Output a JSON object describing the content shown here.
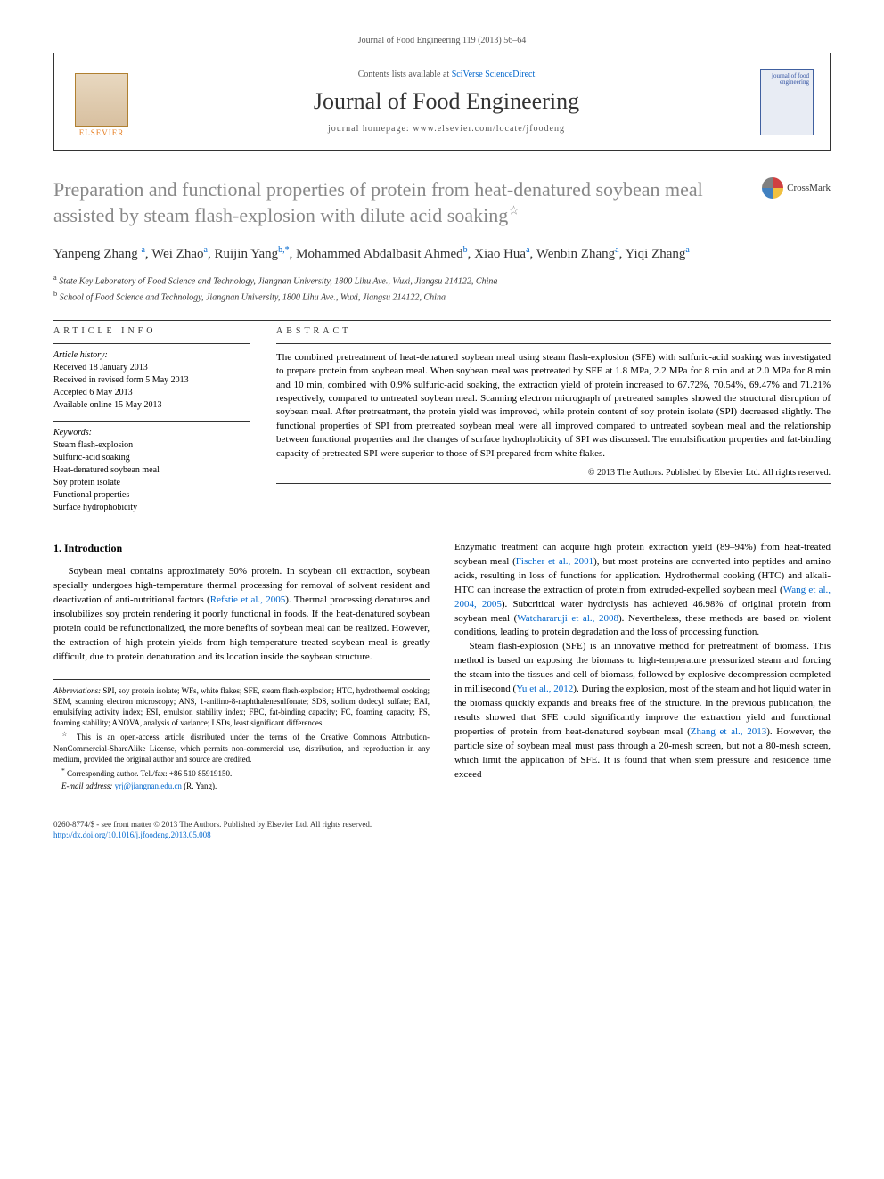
{
  "journal_ref": "Journal of Food Engineering 119 (2013) 56–64",
  "header": {
    "contents_prefix": "Contents lists available at ",
    "contents_link": "SciVerse ScienceDirect",
    "journal_name": "Journal of Food Engineering",
    "homepage_prefix": "journal homepage: ",
    "homepage_url": "www.elsevier.com/locate/jfoodeng",
    "elsevier_label": "ELSEVIER",
    "cover_text": "journal of food engineering"
  },
  "crossmark_label": "CrossMark",
  "title": "Preparation and functional properties of protein from heat-denatured soybean meal assisted by steam flash-explosion with dilute acid soaking",
  "title_star": "☆",
  "authors_html": "Yanpeng Zhang <sup>a</sup>, Wei Zhao<sup>a</sup>, Ruijin Yang<sup>b,*</sup>, Mohammed Abdalbasit Ahmed<sup>b</sup>, Xiao Hua<sup>a</sup>, Wenbin Zhang<sup>a</sup>, Yiqi Zhang<sup>a</sup>",
  "affiliations": {
    "a": "State Key Laboratory of Food Science and Technology, Jiangnan University, 1800 Lihu Ave., Wuxi, Jiangsu 214122, China",
    "b": "School of Food Science and Technology, Jiangnan University, 1800 Lihu Ave., Wuxi, Jiangsu 214122, China"
  },
  "article_info": {
    "heading": "ARTICLE INFO",
    "history_label": "Article history:",
    "history": [
      "Received 18 January 2013",
      "Received in revised form 5 May 2013",
      "Accepted 6 May 2013",
      "Available online 15 May 2013"
    ],
    "keywords_label": "Keywords:",
    "keywords": [
      "Steam flash-explosion",
      "Sulfuric-acid soaking",
      "Heat-denatured soybean meal",
      "Soy protein isolate",
      "Functional properties",
      "Surface hydrophobicity"
    ]
  },
  "abstract": {
    "heading": "ABSTRACT",
    "text": "The combined pretreatment of heat-denatured soybean meal using steam flash-explosion (SFE) with sulfuric-acid soaking was investigated to prepare protein from soybean meal. When soybean meal was pretreated by SFE at 1.8 MPa, 2.2 MPa for 8 min and at 2.0 MPa for 8 min and 10 min, combined with 0.9% sulfuric-acid soaking, the extraction yield of protein increased to 67.72%, 70.54%, 69.47% and 71.21% respectively, compared to untreated soybean meal. Scanning electron micrograph of pretreated samples showed the structural disruption of soybean meal. After pretreatment, the protein yield was improved, while protein content of soy protein isolate (SPI) decreased slightly. The functional properties of SPI from pretreated soybean meal were all improved compared to untreated soybean meal and the relationship between functional properties and the changes of surface hydrophobicity of SPI was discussed. The emulsification properties and fat-binding capacity of pretreated SPI were superior to those of SPI prepared from white flakes.",
    "copyright": "© 2013 The Authors. Published by Elsevier Ltd. All rights reserved."
  },
  "body": {
    "section_heading": "1. Introduction",
    "col1": [
      "Soybean meal contains approximately 50% protein. In soybean oil extraction, soybean specially undergoes high-temperature thermal processing for removal of solvent resident and deactivation of anti-nutritional factors (<span class=\"ref-link\">Refstie et al., 2005</span>). Thermal processing denatures and insolubilizes soy protein rendering it poorly functional in foods. If the heat-denatured soybean protein could be refunctionalized, the more benefits of soybean meal can be realized. However, the extraction of high protein yields from high-temperature treated soybean meal is greatly difficult, due to protein denaturation and its location inside the soybean structure."
    ],
    "col2": [
      "Enzymatic treatment can acquire high protein extraction yield (89–94%) from heat-treated soybean meal (<span class=\"ref-link\">Fischer et al., 2001</span>), but most proteins are converted into peptides and amino acids, resulting in loss of functions for application. Hydrothermal cooking (HTC) and alkali-HTC can increase the extraction of protein from extruded-expelled soybean meal (<span class=\"ref-link\">Wang et al., 2004, 2005</span>). Subcritical water hydrolysis has achieved 46.98% of original protein from soybean meal (<span class=\"ref-link\">Watchararuji et al., 2008</span>). Nevertheless, these methods are based on violent conditions, leading to protein degradation and the loss of processing function.",
      "Steam flash-explosion (SFE) is an innovative method for pretreatment of biomass. This method is based on exposing the biomass to high-temperature pressurized steam and forcing the steam into the tissues and cell of biomass, followed by explosive decompression completed in millisecond (<span class=\"ref-link\">Yu et al., 2012</span>). During the explosion, most of the steam and hot liquid water in the biomass quickly expands and breaks free of the structure. In the previous publication, the results showed that SFE could significantly improve the extraction yield and functional properties of protein from heat-denatured soybean meal (<span class=\"ref-link\">Zhang et al., 2013</span>). However, the particle size of soybean meal must pass through a 20-mesh screen, but not a 80-mesh screen, which limit the application of SFE. It is found that when stem pressure and residence time exceed"
    ]
  },
  "footnotes": {
    "abbrev_label": "Abbreviations:",
    "abbrev": " SPI, soy protein isolate; WFs, white flakes; SFE, steam flash-explosion; HTC, hydrothermal cooking; SEM, scanning electron microscopy; ANS, 1-anilino-8-naphthalenesulfonate; SDS, sodium dodecyl sulfate; EAI, emulsifying activity index; ESI, emulsion stability index; FBC, fat-binding capacity; FC, foaming capacity; FS, foaming stability; ANOVA, analysis of variance; LSDs, least significant differences.",
    "open_access": "This is an open-access article distributed under the terms of the Creative Commons Attribution-NonCommercial-ShareAlike License, which permits non-commercial use, distribution, and reproduction in any medium, provided the original author and source are credited.",
    "corresponding": "Corresponding author. Tel./fax: +86 510 85919150.",
    "email_label": "E-mail address:",
    "email": "yrj@jiangnan.edu.cn",
    "email_who": " (R. Yang)."
  },
  "footer": {
    "line1": "0260-8774/$ - see front matter © 2013 The Authors. Published by Elsevier Ltd. All rights reserved.",
    "line2": "http://dx.doi.org/10.1016/j.jfoodeng.2013.05.008"
  },
  "colors": {
    "title_gray": "#888888",
    "link_blue": "#0066cc",
    "elsevier_orange": "#e67e22",
    "text": "#333333"
  },
  "typography": {
    "title_fontsize": 22,
    "journal_name_fontsize": 26,
    "authors_fontsize": 15,
    "body_fontsize": 11,
    "info_fontsize": 10,
    "footnote_fontsize": 9
  }
}
